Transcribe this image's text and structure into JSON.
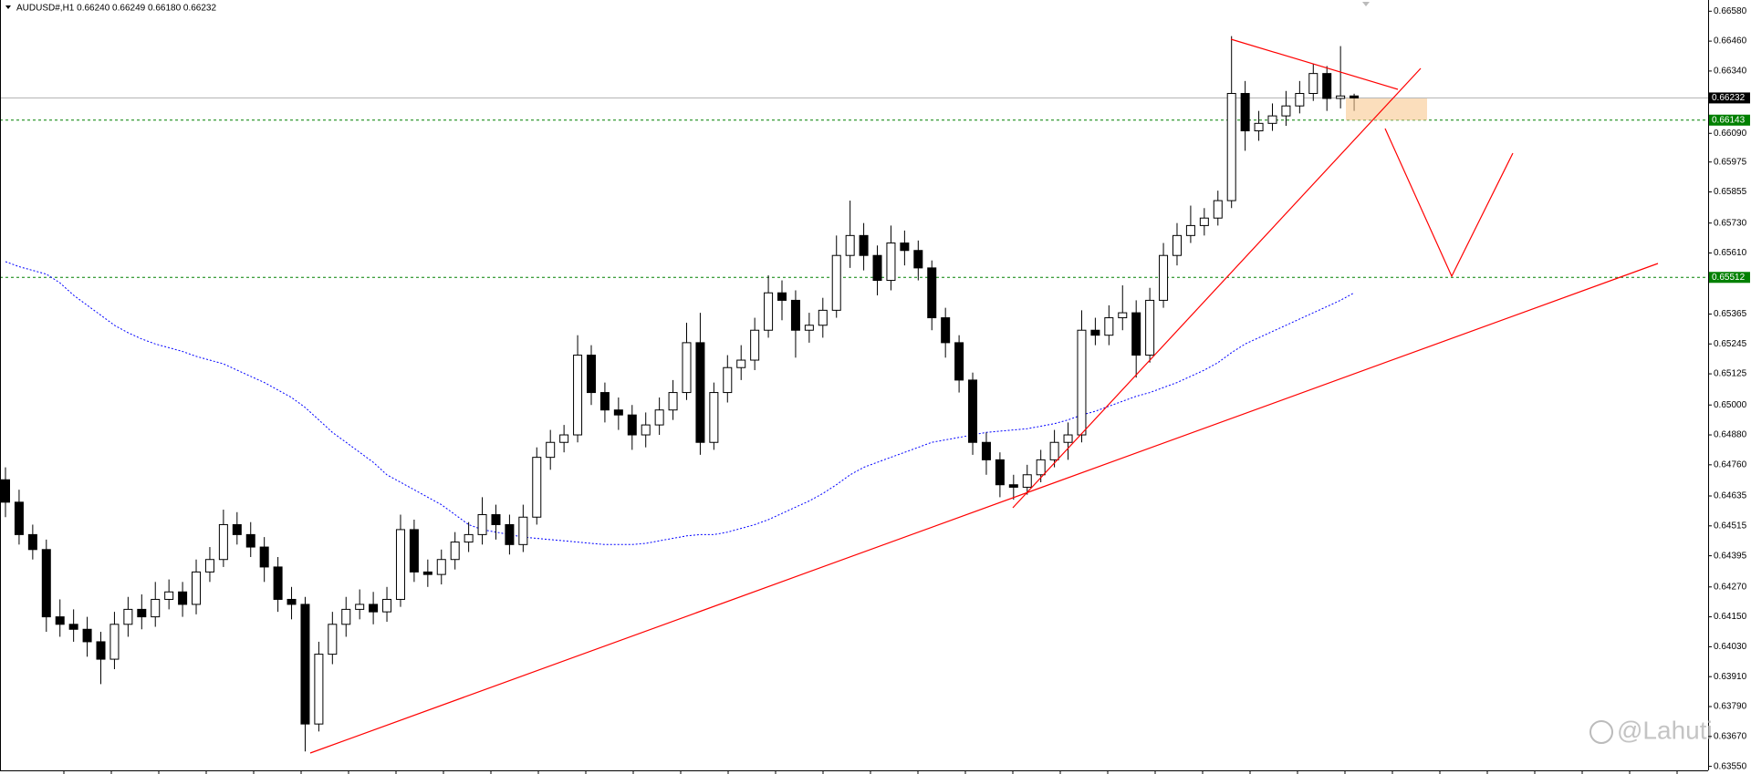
{
  "chart_data": {
    "type": "candlestick",
    "title": "AUDUSD#,H1 0.66240 0.66249 0.66180 0.66232",
    "watermark": "@Lahuti",
    "ylim": [
      0.63534,
      0.66625
    ],
    "yticks": [
      {
        "value": 0.6658,
        "label": "0.66580"
      },
      {
        "value": 0.6646,
        "label": "0.66460"
      },
      {
        "value": 0.6634,
        "label": "0.66340"
      },
      {
        "value": 0.6609,
        "label": "0.66090"
      },
      0.65975,
      0.65855,
      {
        "value": 0.6573,
        "label": "0.65730"
      },
      {
        "value": 0.6561,
        "label": "0.65610"
      },
      0.65365,
      0.65245,
      0.65125,
      {
        "value": 0.65,
        "label": "0.65000"
      },
      {
        "value": 0.6488,
        "label": "0.64880"
      },
      {
        "value": 0.6476,
        "label": "0.64760"
      },
      0.64635,
      0.64515,
      0.64395,
      {
        "value": 0.6427,
        "label": "0.64270"
      },
      {
        "value": 0.6415,
        "label": "0.64150"
      },
      {
        "value": 0.6403,
        "label": "0.64030"
      },
      {
        "value": 0.6391,
        "label": "0.63910"
      },
      {
        "value": 0.6379,
        "label": "0.63790"
      },
      {
        "value": 0.6367,
        "label": "0.63670"
      },
      {
        "value": 0.6355,
        "label": "0.63550"
      }
    ],
    "levels": [
      {
        "value": 0.66232,
        "color": "#b0b0b0",
        "label_color": "#000000"
      },
      {
        "value": 0.66143,
        "color": "#008000",
        "label_color": "#008000"
      },
      {
        "value": 0.65512,
        "color": "#008000",
        "label_color": "#008000"
      }
    ],
    "bull_color": "#ffffff",
    "bear_color": "#000000",
    "ma_color": "#0000ff",
    "open": [
      0.647,
      0.6461,
      0.6448,
      0.6442,
      0.6415,
      0.6412,
      0.641,
      0.6405,
      0.6398,
      0.6412,
      0.6418,
      0.6415,
      0.6422,
      0.6425,
      0.642,
      0.6433,
      0.6438,
      0.6452,
      0.6448,
      0.6443,
      0.6435,
      0.6422,
      0.642,
      0.6372,
      0.64,
      0.6412,
      0.6418,
      0.642,
      0.6417,
      0.6422,
      0.645,
      0.6433,
      0.6432,
      0.6438,
      0.6445,
      0.6448,
      0.6456,
      0.6452,
      0.6444,
      0.6455,
      0.6479,
      0.6485,
      0.6488,
      0.652,
      0.6505,
      0.6498,
      0.6496,
      0.6488,
      0.6492,
      0.6498,
      0.6505,
      0.6525,
      0.6485,
      0.6505,
      0.6515,
      0.6518,
      0.653,
      0.6545,
      0.6542,
      0.653,
      0.6532,
      0.6538,
      0.656,
      0.6568,
      0.656,
      0.655,
      0.6565,
      0.6562,
      0.6555,
      0.6535,
      0.6525,
      0.651,
      0.6485,
      0.6478,
      0.6468,
      0.6467,
      0.6472,
      0.6478,
      0.6485,
      0.6488,
      0.653,
      0.6528,
      0.6535,
      0.6537,
      0.652,
      0.6542,
      0.656,
      0.6568,
      0.6572,
      0.6575,
      0.6582,
      0.6625,
      0.661,
      0.6613,
      0.6616,
      0.662,
      0.6625,
      0.6633,
      0.6623,
      0.6624
    ],
    "high": [
      0.6475,
      0.6466,
      0.6452,
      0.6446,
      0.6422,
      0.6418,
      0.6415,
      0.6409,
      0.6417,
      0.6423,
      0.6424,
      0.6429,
      0.643,
      0.6429,
      0.6438,
      0.6443,
      0.6458,
      0.6457,
      0.6453,
      0.6447,
      0.6439,
      0.6427,
      0.6423,
      0.6405,
      0.6417,
      0.6423,
      0.6426,
      0.6425,
      0.6427,
      0.6456,
      0.6454,
      0.6438,
      0.6442,
      0.6449,
      0.6453,
      0.6463,
      0.646,
      0.6456,
      0.646,
      0.6483,
      0.649,
      0.6492,
      0.6528,
      0.6524,
      0.6509,
      0.6503,
      0.65,
      0.6497,
      0.6503,
      0.651,
      0.6533,
      0.6537,
      0.6509,
      0.652,
      0.6524,
      0.6535,
      0.6552,
      0.655,
      0.6546,
      0.6537,
      0.6543,
      0.6568,
      0.6582,
      0.6573,
      0.6564,
      0.6572,
      0.657,
      0.6566,
      0.6558,
      0.6539,
      0.6528,
      0.6513,
      0.6489,
      0.6481,
      0.6472,
      0.6476,
      0.6482,
      0.649,
      0.6493,
      0.6538,
      0.6535,
      0.654,
      0.6548,
      0.6542,
      0.6547,
      0.6565,
      0.6573,
      0.658,
      0.6579,
      0.6586,
      0.6648,
      0.663,
      0.6618,
      0.6621,
      0.6626,
      0.663,
      0.6637,
      0.6636,
      0.6644,
      0.66249
    ],
    "low": [
      0.6455,
      0.6444,
      0.6438,
      0.6409,
      0.6407,
      0.6405,
      0.6399,
      0.6388,
      0.6394,
      0.6407,
      0.641,
      0.6411,
      0.6418,
      0.6415,
      0.6416,
      0.6429,
      0.6435,
      0.6444,
      0.6439,
      0.6429,
      0.6417,
      0.6414,
      0.6361,
      0.6369,
      0.6396,
      0.6407,
      0.6414,
      0.6412,
      0.6413,
      0.6419,
      0.6429,
      0.6427,
      0.6428,
      0.6434,
      0.6441,
      0.6444,
      0.6446,
      0.644,
      0.6441,
      0.6452,
      0.6474,
      0.6481,
      0.6485,
      0.65,
      0.6493,
      0.649,
      0.6482,
      0.6483,
      0.6488,
      0.6494,
      0.6502,
      0.648,
      0.6482,
      0.6501,
      0.651,
      0.6514,
      0.6527,
      0.6534,
      0.6519,
      0.6525,
      0.6527,
      0.6535,
      0.6555,
      0.6554,
      0.6544,
      0.6546,
      0.6556,
      0.655,
      0.653,
      0.6519,
      0.6505,
      0.648,
      0.6472,
      0.6463,
      0.6462,
      0.6464,
      0.6469,
      0.6475,
      0.6478,
      0.6485,
      0.6524,
      0.6524,
      0.653,
      0.6511,
      0.6517,
      0.6539,
      0.6556,
      0.6565,
      0.6568,
      0.6572,
      0.6579,
      0.6602,
      0.6606,
      0.661,
      0.6612,
      0.6617,
      0.6622,
      0.6618,
      0.6619,
      0.6618
    ],
    "close": [
      0.6461,
      0.6448,
      0.6442,
      0.6415,
      0.6412,
      0.641,
      0.6405,
      0.6398,
      0.6412,
      0.6418,
      0.6415,
      0.6422,
      0.6425,
      0.642,
      0.6433,
      0.6438,
      0.6452,
      0.6448,
      0.6443,
      0.6435,
      0.6422,
      0.642,
      0.6372,
      0.64,
      0.6412,
      0.6418,
      0.642,
      0.6417,
      0.6422,
      0.645,
      0.6433,
      0.6432,
      0.6438,
      0.6445,
      0.6448,
      0.6456,
      0.6452,
      0.6444,
      0.6455,
      0.6479,
      0.6485,
      0.6488,
      0.652,
      0.6505,
      0.6498,
      0.6496,
      0.6488,
      0.6492,
      0.6498,
      0.6505,
      0.6525,
      0.6485,
      0.6505,
      0.6515,
      0.6518,
      0.653,
      0.6545,
      0.6542,
      0.653,
      0.6532,
      0.6538,
      0.656,
      0.6568,
      0.656,
      0.655,
      0.6565,
      0.6562,
      0.6555,
      0.6535,
      0.6525,
      0.651,
      0.6485,
      0.6478,
      0.6468,
      0.6467,
      0.6472,
      0.6478,
      0.6485,
      0.6488,
      0.653,
      0.6528,
      0.6535,
      0.6537,
      0.652,
      0.6542,
      0.656,
      0.6568,
      0.6572,
      0.6575,
      0.6582,
      0.6625,
      0.661,
      0.6613,
      0.6616,
      0.662,
      0.6625,
      0.6633,
      0.6623,
      0.6624,
      0.66232
    ],
    "ma": [
      0.65575,
      0.65555,
      0.6554,
      0.65525,
      0.6549,
      0.6544,
      0.654,
      0.6536,
      0.6532,
      0.6529,
      0.65265,
      0.65245,
      0.6523,
      0.65215,
      0.65195,
      0.6518,
      0.65165,
      0.6514,
      0.65115,
      0.6509,
      0.6506,
      0.6503,
      0.6499,
      0.6494,
      0.6489,
      0.6485,
      0.6481,
      0.6477,
      0.6472,
      0.6469,
      0.6466,
      0.6463,
      0.646,
      0.6456,
      0.6452,
      0.645,
      0.6449,
      0.6448,
      0.6447,
      0.64465,
      0.6446,
      0.64455,
      0.6445,
      0.64445,
      0.6444,
      0.6444,
      0.6444,
      0.64445,
      0.64455,
      0.64465,
      0.64475,
      0.6448,
      0.6448,
      0.6449,
      0.64505,
      0.6452,
      0.6454,
      0.64565,
      0.6459,
      0.64615,
      0.64645,
      0.6468,
      0.6472,
      0.6475,
      0.6477,
      0.6479,
      0.6481,
      0.6483,
      0.6485,
      0.6486,
      0.6487,
      0.6488,
      0.6489,
      0.64895,
      0.649,
      0.64905,
      0.64915,
      0.64925,
      0.6494,
      0.6496,
      0.64975,
      0.64995,
      0.65015,
      0.65035,
      0.6505,
      0.6507,
      0.6509,
      0.65115,
      0.6514,
      0.6517,
      0.6521,
      0.65245,
      0.6527,
      0.65295,
      0.6532,
      0.65345,
      0.6537,
      0.65395,
      0.6542,
      0.6545
    ]
  }
}
